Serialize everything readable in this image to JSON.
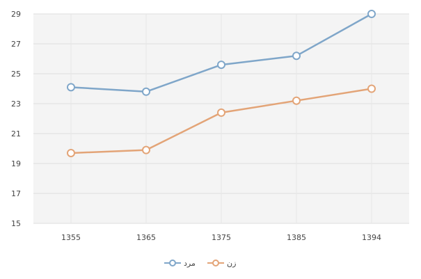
{
  "chart_data": {
    "type": "line",
    "title": "",
    "xlabel": "",
    "ylabel": "",
    "categories": [
      "1355",
      "1365",
      "1375",
      "1385",
      "1394"
    ],
    "ylim": [
      15,
      29
    ],
    "yticks": [
      15,
      17,
      19,
      21,
      23,
      25,
      27,
      29
    ],
    "grid": true,
    "legend_position": "bottom",
    "series": [
      {
        "name": "مرد",
        "color": "#7fa6c9",
        "values": [
          24.1,
          23.8,
          25.6,
          26.2,
          29.0
        ]
      },
      {
        "name": "زن",
        "color": "#e3a477",
        "values": [
          19.7,
          19.9,
          22.4,
          23.2,
          24.0
        ]
      }
    ]
  }
}
